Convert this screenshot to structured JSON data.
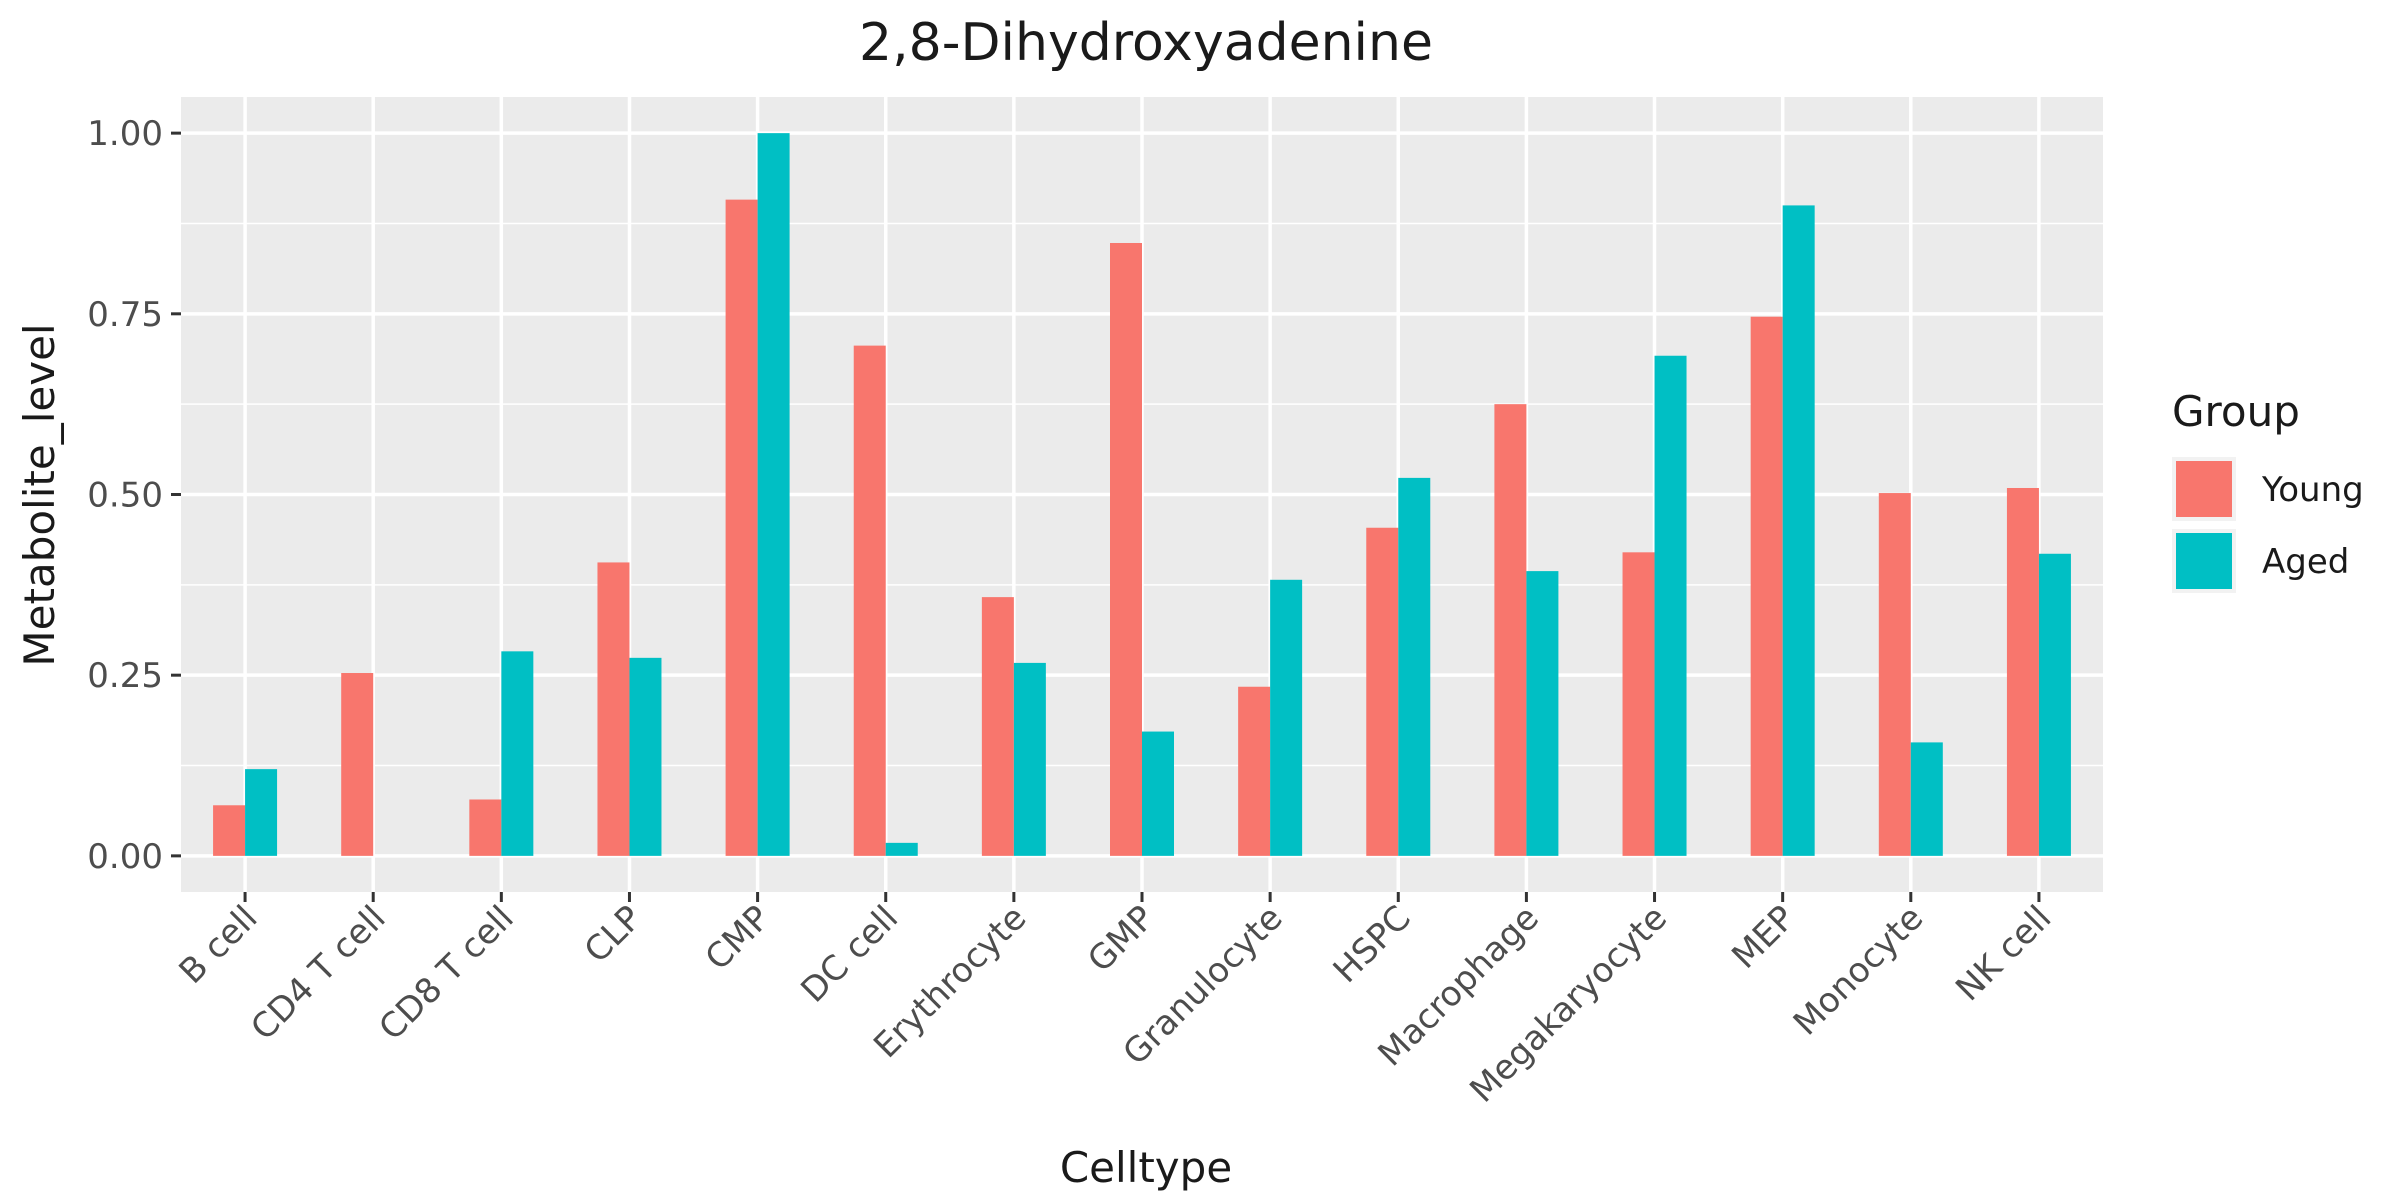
{
  "chart_data": {
    "type": "bar",
    "title": "2,8-Dihydroxyadenine",
    "xlabel": "Celltype",
    "ylabel": "Metabolite_level",
    "ylim": [
      -0.05,
      1.05
    ],
    "yticks": [
      0.0,
      0.25,
      0.5,
      0.75,
      1.0
    ],
    "ytick_labels": [
      "0.00",
      "0.25",
      "0.50",
      "0.75",
      "1.00"
    ],
    "grid": true,
    "legend": {
      "title": "Group",
      "position": "right"
    },
    "categories": [
      "B cell",
      "CD4 T cell",
      "CD8 T cell",
      "CLP",
      "CMP",
      "DC cell",
      "Erythrocyte",
      "GMP",
      "Granulocyte",
      "HSPC",
      "Macrophage",
      "Megakaryocyte",
      "MEP",
      "Monocyte",
      "NK cell"
    ],
    "series": [
      {
        "name": "Young",
        "color": "#F8766D",
        "values": [
          0.07,
          0.253,
          0.078,
          0.406,
          0.908,
          0.706,
          0.358,
          0.848,
          0.234,
          0.454,
          0.625,
          0.42,
          0.746,
          0.502,
          0.509
        ]
      },
      {
        "name": "Aged",
        "color": "#00BFC4",
        "values": [
          0.12,
          0.0,
          0.283,
          0.274,
          1.0,
          0.018,
          0.267,
          0.172,
          0.382,
          0.523,
          0.394,
          0.692,
          0.9,
          0.157,
          0.418
        ]
      }
    ]
  }
}
